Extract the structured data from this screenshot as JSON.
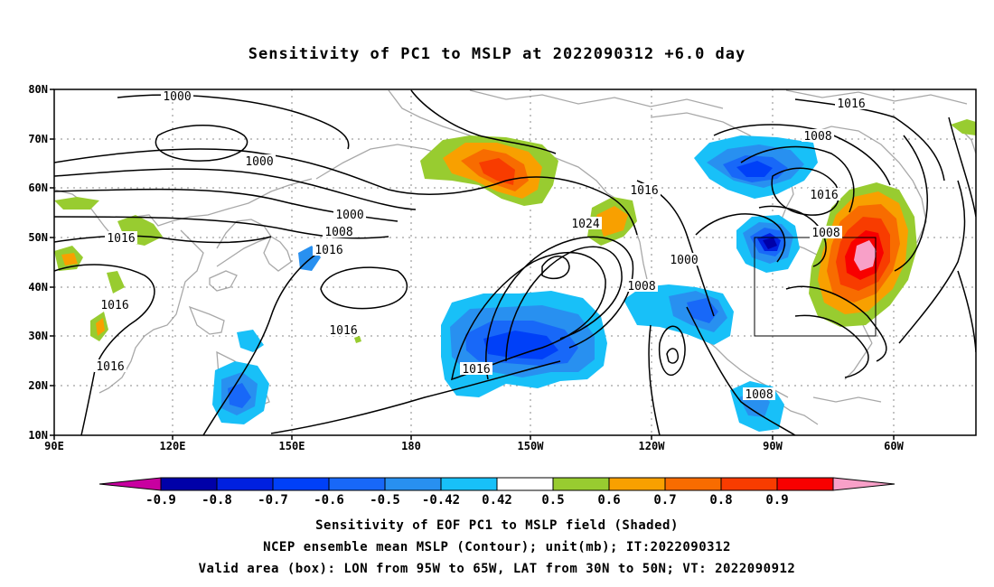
{
  "title": "Sensitivity of PC1 to MSLP at 2022090312 +6.0 day",
  "latitude_labels": [
    "80N",
    "70N",
    "60N",
    "50N",
    "40N",
    "30N",
    "20N",
    "10N"
  ],
  "longitude_labels": [
    "90E",
    "120E",
    "150E",
    "180",
    "150W",
    "120W",
    "90W",
    "60W"
  ],
  "contour_labels": [
    "1000",
    "1000",
    "1000",
    "1008",
    "1016",
    "1016",
    "1016",
    "1016",
    "1016",
    "1016",
    "1024",
    "1016",
    "1016",
    "1008",
    "1016",
    "1008",
    "1000",
    "1008",
    "1008"
  ],
  "colorbar": {
    "labels": [
      "-0.9",
      "-0.8",
      "-0.7",
      "-0.6",
      "-0.5",
      "-0.42",
      "0.42",
      "0.5",
      "0.6",
      "0.7",
      "0.8",
      "0.9"
    ],
    "colors": [
      "#0000a8",
      "#0020e0",
      "#0040f8",
      "#1868f8",
      "#2890f0",
      "#18c0f8",
      "#ffffff",
      "#98cc30",
      "#f8a000",
      "#f86c00",
      "#f83c00",
      "#f80000"
    ],
    "low_extend_color": "#c800a0",
    "high_extend_color": "#f8a0c8"
  },
  "captions": [
    "Sensitivity of EOF PC1 to MSLP field (Shaded)",
    "NCEP ensemble mean MSLP (Contour); unit(mb); IT:2022090312",
    "Valid area (box): LON from 95W to 65W, LAT from 30N to 50N; VT: 2022090912"
  ]
}
